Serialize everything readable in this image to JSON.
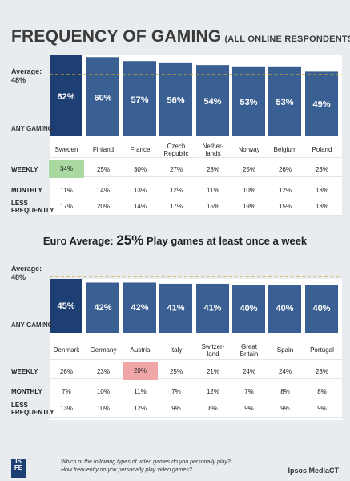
{
  "title": "FREQUENCY OF GAMING",
  "subtitle": "(ALL ONLINE RESPONDENTS)",
  "average_label": "Average:",
  "average_value": "48%",
  "any_gaming_label": "ANY GAMING",
  "row_labels": {
    "weekly": "WEEKLY",
    "monthly": "MONTHLY",
    "less": [
      "LESS",
      "FREQUENTLY"
    ]
  },
  "euro_average": {
    "prefix": "Euro Average:",
    "value": "25%",
    "suffix": "Play games at least once a week"
  },
  "footer": {
    "logo": [
      "IS",
      "FE"
    ],
    "question1": "Which of the following types of video games do you personally play?",
    "question2": "How frequently do you personally play video games?",
    "brand": "Ipsos MediaCT"
  },
  "colors": {
    "bar": "#3a5f93",
    "bar_dark": "#1e3f73",
    "highlight_green": "#a9d8a0",
    "highlight_red": "#f0a6a6",
    "avg_line": "#c8a62a"
  },
  "chart_data": [
    {
      "type": "bar",
      "average": 48,
      "ylim": [
        0,
        65
      ],
      "categories": [
        [
          "Sweden"
        ],
        [
          "Finland"
        ],
        [
          "France"
        ],
        [
          "Czech",
          "Republic"
        ],
        [
          "Nether-",
          "lands"
        ],
        [
          "Norway"
        ],
        [
          "Belgium"
        ],
        [
          "Poland"
        ]
      ],
      "series": [
        {
          "values": [
            62,
            60,
            57,
            56,
            54,
            53,
            53,
            49
          ],
          "labels": [
            "62%",
            "60%",
            "57%",
            "56%",
            "54%",
            "53%",
            "53%",
            "49%"
          ]
        }
      ],
      "table": {
        "weekly": [
          "34%",
          "25%",
          "30%",
          "27%",
          "28%",
          "25%",
          "26%",
          "23%"
        ],
        "monthly": [
          "11%",
          "14%",
          "13%",
          "12%",
          "11%",
          "10%",
          "12%",
          "13%"
        ],
        "less": [
          "17%",
          "20%",
          "14%",
          "17%",
          "15%",
          "19%",
          "15%",
          "13%"
        ],
        "highlight": {
          "row": "weekly",
          "index": 0,
          "color": "green"
        }
      }
    },
    {
      "type": "bar",
      "average": 48,
      "ylim": [
        0,
        65
      ],
      "categories": [
        [
          "Denmark"
        ],
        [
          "Germany"
        ],
        [
          "Austria"
        ],
        [
          "Italy"
        ],
        [
          "Switzer-",
          "land"
        ],
        [
          "Great",
          "Britain"
        ],
        [
          "Spain"
        ],
        [
          "Portugal"
        ]
      ],
      "series": [
        {
          "values": [
            45,
            42,
            42,
            41,
            41,
            40,
            40,
            40
          ],
          "labels": [
            "45%",
            "42%",
            "42%",
            "41%",
            "41%",
            "40%",
            "40%",
            "40%"
          ]
        }
      ],
      "table": {
        "weekly": [
          "26%",
          "23%",
          "20%",
          "25%",
          "21%",
          "24%",
          "24%",
          "23%"
        ],
        "monthly": [
          "7%",
          "10%",
          "11%",
          "7%",
          "12%",
          "7%",
          "8%",
          "8%"
        ],
        "less": [
          "13%",
          "10%",
          "12%",
          "9%",
          "8%",
          "9%",
          "9%",
          "9%"
        ],
        "highlight": {
          "row": "weekly",
          "index": 2,
          "color": "red"
        }
      }
    }
  ]
}
